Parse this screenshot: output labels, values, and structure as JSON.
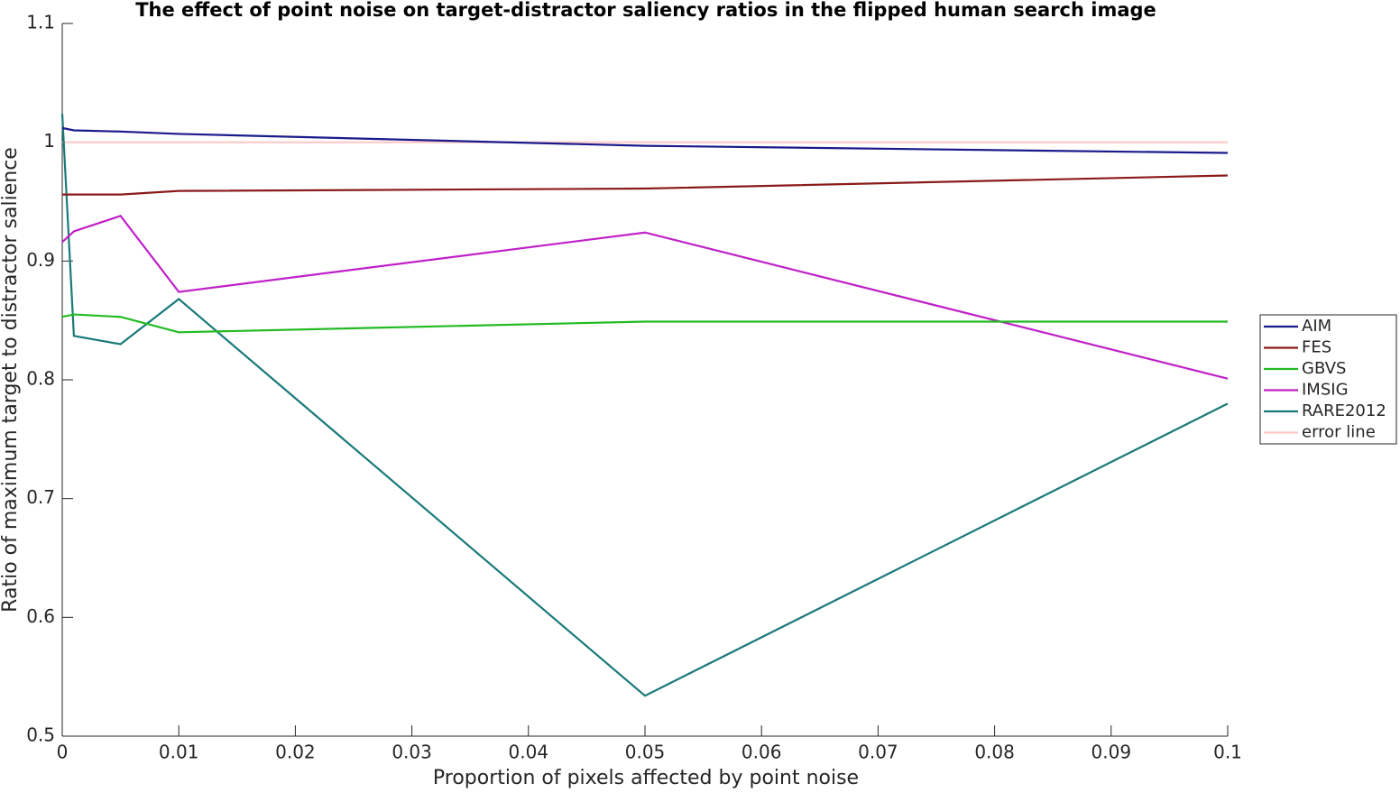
{
  "chart_data": {
    "type": "line",
    "title": "The effect of point noise on target-distractor saliency ratios in the flipped human search image",
    "x_label": "Proportion of pixels affected by point noise",
    "y_label": "Ratio of maximum target to distractor salience",
    "x": [
      0,
      0.001,
      0.005,
      0.01,
      0.05,
      0.1
    ],
    "series": [
      {
        "name": "AIM",
        "color": "#1a1a8c",
        "values": [
          1.012,
          1.01,
          1.009,
          1.007,
          0.997,
          0.991
        ]
      },
      {
        "name": "FES",
        "color": "#8b1a1a",
        "values": [
          0.956,
          0.956,
          0.956,
          0.959,
          0.961,
          0.972
        ]
      },
      {
        "name": "GBVS",
        "color": "#22bb22",
        "values": [
          0.853,
          0.855,
          0.853,
          0.84,
          0.849,
          0.849
        ]
      },
      {
        "name": "IMSIG",
        "color": "#c020c8",
        "values": [
          0.916,
          0.925,
          0.938,
          0.874,
          0.924,
          0.801
        ]
      },
      {
        "name": "RARE2012",
        "color": "#1a7a7a",
        "values": [
          1.024,
          0.837,
          0.83,
          0.868,
          0.534,
          0.78
        ]
      },
      {
        "name": "error line",
        "color": "#ffc8c8",
        "values": [
          1,
          1,
          1,
          1,
          1,
          1
        ]
      }
    ],
    "xlim": [
      0,
      0.1
    ],
    "ylim": [
      0.5,
      1.1
    ],
    "xticks": [
      0,
      0.01,
      0.02,
      0.03,
      0.04,
      0.05,
      0.06,
      0.07,
      0.08,
      0.09,
      0.1
    ],
    "yticks": [
      0.5,
      0.6,
      0.7,
      0.8,
      0.9,
      1,
      1.1
    ],
    "legend": "right"
  }
}
